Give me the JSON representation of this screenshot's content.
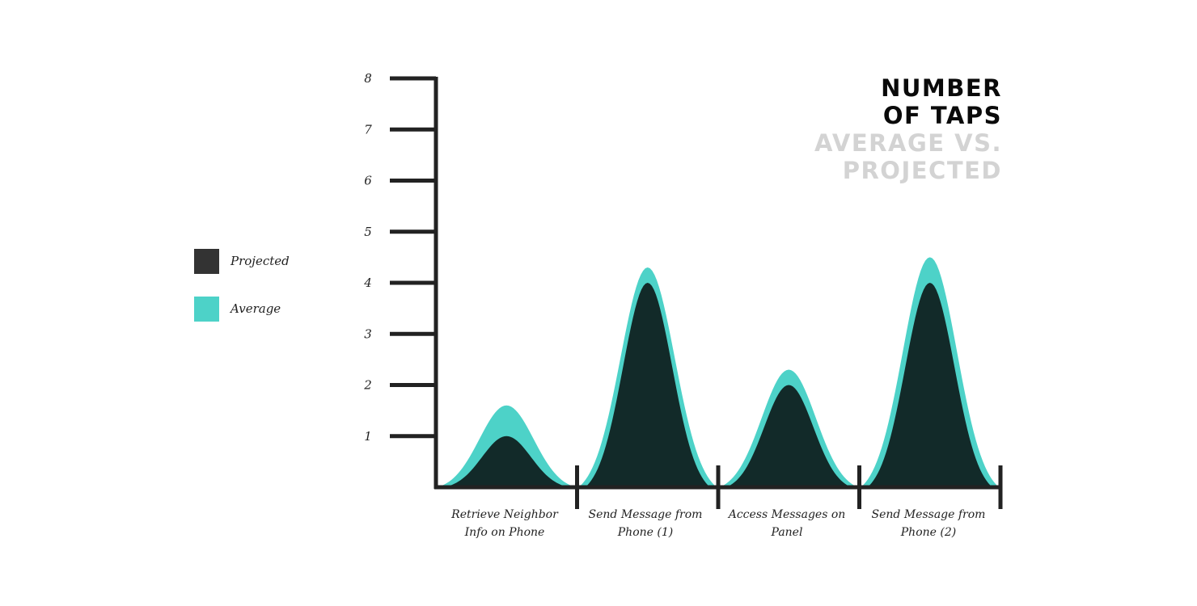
{
  "title_lines": [
    "Number",
    "of taps"
  ],
  "subtitle_lines": [
    "Average vs.",
    "Projected"
  ],
  "colors": {
    "projected": "#122a29",
    "average": "#4dd2c8",
    "projected_legend": "#333333",
    "axis": "#222222"
  },
  "chart_data": {
    "type": "area",
    "title": "Number of taps",
    "subtitle": "Average vs. Projected",
    "categories": [
      "Retrieve Neighbor Info on Phone",
      "Send Message from Phone (1)",
      "Access Messages on Panel",
      "Send Message from Phone (2)"
    ],
    "category_label_lines": [
      [
        "Retrieve Neighbor",
        "Info on Phone"
      ],
      [
        "Send Message from",
        "Phone (1)"
      ],
      [
        "Access Messages on",
        "Panel"
      ],
      [
        "Send Message from",
        "Phone (2)"
      ]
    ],
    "series": [
      {
        "name": "Projected",
        "values": [
          1,
          4,
          2,
          4
        ]
      },
      {
        "name": "Average",
        "values": [
          1.6,
          4.3,
          2.3,
          4.5
        ]
      }
    ],
    "ylim": [
      0,
      8
    ],
    "yticks": [
      1,
      2,
      3,
      4,
      5,
      6,
      7,
      8
    ],
    "grid": false,
    "legend_position": "left"
  }
}
